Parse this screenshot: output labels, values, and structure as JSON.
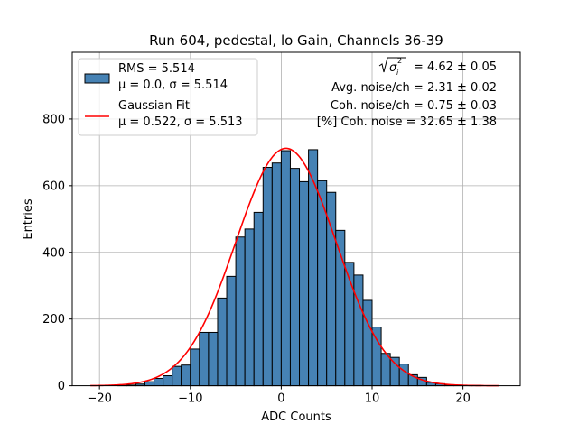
{
  "chart_data": {
    "type": "bar",
    "title": "Run 604, pedestal, lo Gain, Channels 36-39",
    "xlabel": "ADC Counts",
    "ylabel": "Entries",
    "xlim": [
      -23,
      26.3
    ],
    "ylim": [
      0,
      1000
    ],
    "xticks": [
      -20,
      -10,
      0,
      10,
      20
    ],
    "xtick_labels": [
      "−20",
      "−10",
      "0",
      "10",
      "20"
    ],
    "yticks": [
      0,
      200,
      400,
      600,
      800
    ],
    "ytick_labels": [
      "0",
      "200",
      "400",
      "600",
      "800"
    ],
    "grid": true,
    "bin_width": 1,
    "bins": [
      {
        "x0": -21,
        "count": 0
      },
      {
        "x0": -20,
        "count": 0
      },
      {
        "x0": -19,
        "count": 0
      },
      {
        "x0": -18,
        "count": 1
      },
      {
        "x0": -17,
        "count": 2
      },
      {
        "x0": -16,
        "count": 5
      },
      {
        "x0": -15,
        "count": 12
      },
      {
        "x0": -14,
        "count": 22
      },
      {
        "x0": -13,
        "count": 30
      },
      {
        "x0": -12,
        "count": 58
      },
      {
        "x0": -11,
        "count": 62
      },
      {
        "x0": -10,
        "count": 110
      },
      {
        "x0": -9,
        "count": 160
      },
      {
        "x0": -8,
        "count": 160
      },
      {
        "x0": -7,
        "count": 263
      },
      {
        "x0": -6,
        "count": 328
      },
      {
        "x0": -5,
        "count": 446
      },
      {
        "x0": -4,
        "count": 470
      },
      {
        "x0": -3,
        "count": 520
      },
      {
        "x0": -2,
        "count": 655
      },
      {
        "x0": -1,
        "count": 668
      },
      {
        "x0": 0,
        "count": 705
      },
      {
        "x0": 1,
        "count": 652
      },
      {
        "x0": 2,
        "count": 612
      },
      {
        "x0": 3,
        "count": 708
      },
      {
        "x0": 4,
        "count": 615
      },
      {
        "x0": 5,
        "count": 580
      },
      {
        "x0": 6,
        "count": 466
      },
      {
        "x0": 7,
        "count": 370
      },
      {
        "x0": 8,
        "count": 332
      },
      {
        "x0": 9,
        "count": 256
      },
      {
        "x0": 10,
        "count": 176
      },
      {
        "x0": 11,
        "count": 97
      },
      {
        "x0": 12,
        "count": 85
      },
      {
        "x0": 13,
        "count": 65
      },
      {
        "x0": 14,
        "count": 33
      },
      {
        "x0": 15,
        "count": 25
      },
      {
        "x0": 16,
        "count": 10
      },
      {
        "x0": 17,
        "count": 6
      },
      {
        "x0": 18,
        "count": 3
      },
      {
        "x0": 19,
        "count": 2
      },
      {
        "x0": 20,
        "count": 1
      },
      {
        "x0": 21,
        "count": 1
      },
      {
        "x0": 22,
        "count": 0
      },
      {
        "x0": 23,
        "count": 0
      }
    ],
    "fit": {
      "type": "gaussian",
      "mu": 0.522,
      "sigma": 5.513,
      "amplitude": 712,
      "x_range": [
        -21,
        24
      ],
      "color": "#ff0000"
    },
    "bar_color": "#4682b4",
    "bar_edge_color": "#000000",
    "legend": {
      "location": "upper-left",
      "entries": [
        {
          "kind": "patch",
          "line1": "RMS = 5.514",
          "line2": "μ = 0.0, σ = 5.514",
          "color": "#4682b4"
        },
        {
          "kind": "line",
          "line1": "Gaussian Fit",
          "line2": "μ = 0.522, σ = 5.513",
          "color": "#ff0000"
        }
      ]
    },
    "annotations": {
      "location": "upper-right",
      "sqrt_suffix": " = 4.62 ± 0.05",
      "lines": [
        "Avg. noise/ch = 2.31 ± 0.02",
        "Coh. noise/ch = 0.75 ± 0.03",
        "[%] Coh. noise = 32.65 ± 1.38"
      ]
    }
  }
}
